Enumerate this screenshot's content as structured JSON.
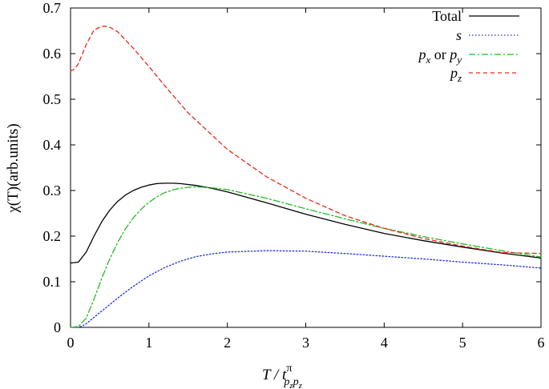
{
  "chart_data": {
    "type": "line",
    "xlabel": "T / t",
    "xlabel_sup": "π",
    "xlabel_sub": "p",
    "xlabel_subsub": "z",
    "ylabel": "χ(T)(arb.units)",
    "xlim": [
      0,
      6
    ],
    "ylim": [
      0,
      0.7
    ],
    "xticks": [
      "0",
      "1",
      "2",
      "3",
      "4",
      "5",
      "6"
    ],
    "yticks": [
      "0",
      "0.1",
      "0.2",
      "0.3",
      "0.4",
      "0.5",
      "0.6",
      "0.7"
    ],
    "grid": false,
    "legend_position": "top-right",
    "series": [
      {
        "name": "Total",
        "color": "#000000",
        "dash": "solid",
        "x": [
          0,
          0.1,
          0.2,
          0.3,
          0.4,
          0.5,
          0.6,
          0.7,
          0.8,
          0.9,
          1.0,
          1.1,
          1.2,
          1.3,
          1.4,
          1.6,
          1.8,
          2.0,
          2.5,
          3.0,
          3.5,
          4.0,
          4.5,
          5.0,
          5.5,
          6.0
        ],
        "y": [
          0.141,
          0.143,
          0.165,
          0.2,
          0.232,
          0.257,
          0.276,
          0.29,
          0.3,
          0.307,
          0.312,
          0.315,
          0.316,
          0.316,
          0.315,
          0.311,
          0.305,
          0.297,
          0.273,
          0.248,
          0.226,
          0.206,
          0.19,
          0.176,
          0.163,
          0.152
        ]
      },
      {
        "name": "s",
        "color": "#1f2fd6",
        "dash": "dotted",
        "x": [
          0,
          0.1,
          0.15,
          0.2,
          0.3,
          0.4,
          0.5,
          0.6,
          0.8,
          1.0,
          1.2,
          1.4,
          1.6,
          1.8,
          2.0,
          2.5,
          3.0,
          3.5,
          4.0,
          4.5,
          5.0,
          5.5,
          6.0
        ],
        "y": [
          0,
          0,
          0.003,
          0.008,
          0.022,
          0.036,
          0.05,
          0.064,
          0.09,
          0.113,
          0.131,
          0.145,
          0.155,
          0.161,
          0.165,
          0.168,
          0.167,
          0.162,
          0.156,
          0.15,
          0.143,
          0.137,
          0.13
        ]
      },
      {
        "name": "p_x or p_y",
        "color": "#22bb22",
        "dash": "dashdot",
        "x": [
          0,
          0.1,
          0.2,
          0.3,
          0.4,
          0.5,
          0.6,
          0.7,
          0.8,
          0.9,
          1.0,
          1.1,
          1.2,
          1.3,
          1.4,
          1.5,
          1.6,
          1.8,
          2.0,
          2.5,
          3.0,
          3.5,
          4.0,
          4.5,
          5.0,
          5.5,
          6.0
        ],
        "y": [
          0,
          0.002,
          0.02,
          0.062,
          0.108,
          0.15,
          0.186,
          0.216,
          0.24,
          0.259,
          0.274,
          0.286,
          0.295,
          0.301,
          0.305,
          0.307,
          0.308,
          0.306,
          0.302,
          0.283,
          0.26,
          0.238,
          0.217,
          0.199,
          0.183,
          0.168,
          0.154
        ]
      },
      {
        "name": "p_z",
        "color": "#e8291c",
        "dash": "dashed",
        "x": [
          0,
          0.05,
          0.1,
          0.2,
          0.3,
          0.4,
          0.45,
          0.5,
          0.6,
          0.8,
          1.0,
          1.2,
          1.5,
          2.0,
          2.5,
          3.0,
          3.5,
          4.0,
          4.5,
          5.0,
          5.5,
          6.0
        ],
        "y": [
          0.562,
          0.566,
          0.578,
          0.62,
          0.652,
          0.66,
          0.66,
          0.658,
          0.648,
          0.612,
          0.572,
          0.53,
          0.47,
          0.39,
          0.33,
          0.283,
          0.245,
          0.217,
          0.195,
          0.178,
          0.164,
          0.162
        ]
      }
    ],
    "legend": [
      {
        "label": "Total",
        "italic": false,
        "sub": ""
      },
      {
        "label": "s",
        "italic": true,
        "sub": ""
      },
      {
        "label_parts": [
          "p",
          "x",
          " or ",
          "p",
          "y"
        ]
      },
      {
        "label": "p",
        "italic": true,
        "sub": "z"
      }
    ]
  }
}
